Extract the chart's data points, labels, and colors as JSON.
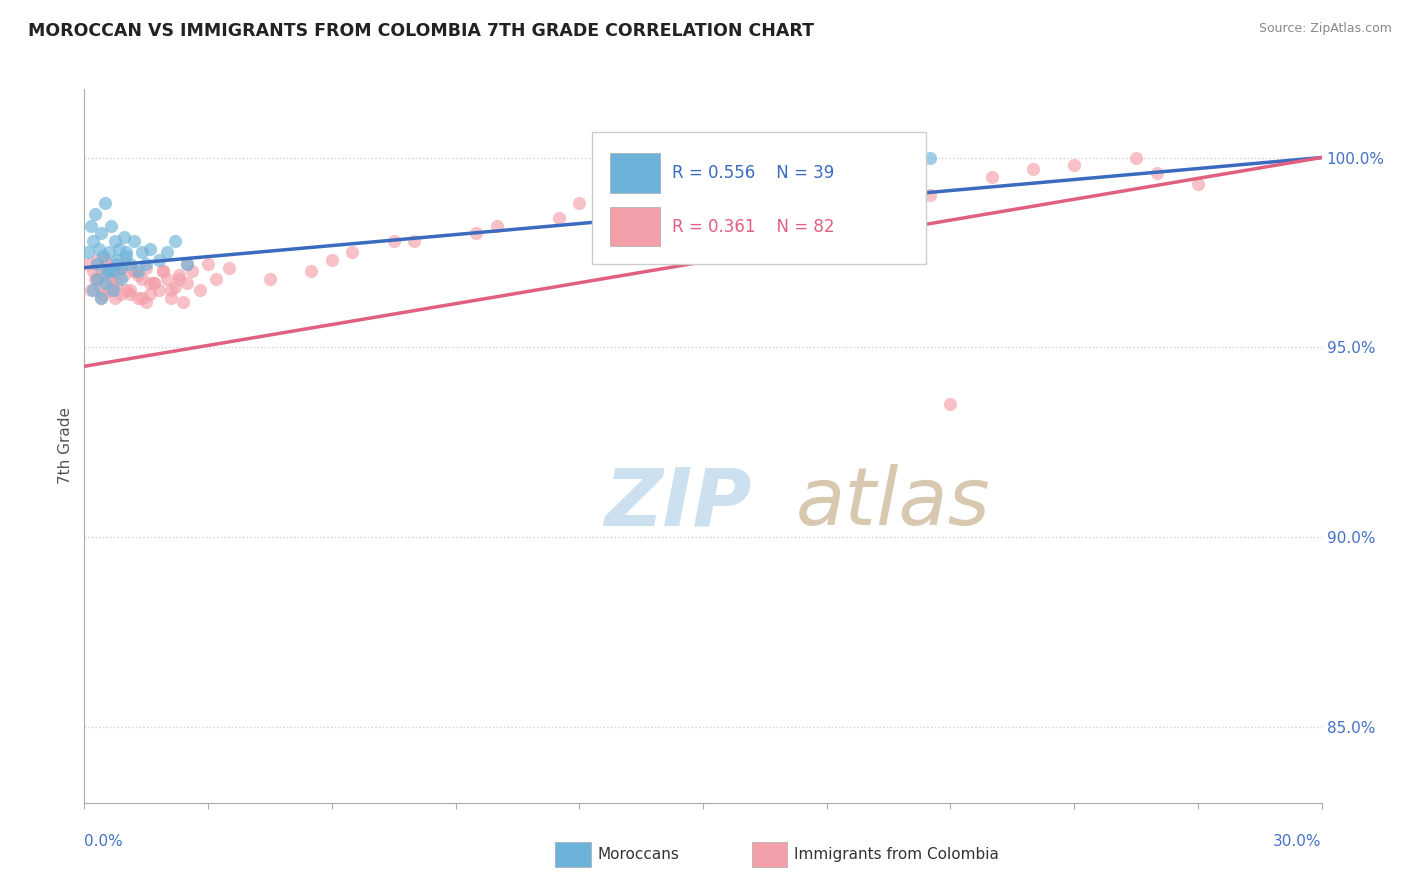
{
  "title": "MOROCCAN VS IMMIGRANTS FROM COLOMBIA 7TH GRADE CORRELATION CHART",
  "source": "Source: ZipAtlas.com",
  "ylabel": "7th Grade",
  "xmin": 0.0,
  "xmax": 30.0,
  "ymin": 83.0,
  "ymax": 101.8,
  "yticks": [
    85.0,
    90.0,
    95.0,
    100.0
  ],
  "ytick_labels": [
    "85.0%",
    "90.0%",
    "95.0%",
    "100.0%"
  ],
  "legend_blue_r": "R = 0.556",
  "legend_blue_n": "N = 39",
  "legend_pink_r": "R = 0.361",
  "legend_pink_n": "N = 82",
  "blue_color": "#6db3d9",
  "pink_color": "#f4a0aa",
  "blue_line_color": "#3a6bbf",
  "pink_line_color": "#e06080",
  "blue_line_x0": 0.0,
  "blue_line_y0": 97.1,
  "blue_line_x1": 30.0,
  "blue_line_y1": 100.0,
  "pink_line_x0": 0.0,
  "pink_line_y0": 94.5,
  "pink_line_x1": 30.0,
  "pink_line_y1": 100.0,
  "blue_scatter_x": [
    0.1,
    0.15,
    0.2,
    0.25,
    0.3,
    0.35,
    0.4,
    0.45,
    0.5,
    0.55,
    0.6,
    0.65,
    0.7,
    0.75,
    0.8,
    0.85,
    0.9,
    0.95,
    1.0,
    1.1,
    1.2,
    1.3,
    1.4,
    1.5,
    1.6,
    1.8,
    2.0,
    2.2,
    2.5,
    0.2,
    0.3,
    0.4,
    0.5,
    0.6,
    0.7,
    0.8,
    0.9,
    1.0,
    20.5
  ],
  "blue_scatter_y": [
    97.5,
    98.2,
    97.8,
    98.5,
    97.2,
    97.6,
    98.0,
    97.4,
    98.8,
    97.0,
    97.5,
    98.2,
    97.0,
    97.8,
    97.3,
    97.6,
    97.1,
    97.9,
    97.4,
    97.2,
    97.8,
    97.0,
    97.5,
    97.2,
    97.6,
    97.3,
    97.5,
    97.8,
    97.2,
    96.5,
    96.8,
    96.3,
    96.7,
    97.0,
    96.5,
    97.2,
    96.8,
    97.5,
    100.0
  ],
  "pink_scatter_x": [
    0.1,
    0.15,
    0.2,
    0.25,
    0.3,
    0.35,
    0.4,
    0.45,
    0.5,
    0.55,
    0.6,
    0.65,
    0.7,
    0.75,
    0.8,
    0.85,
    0.9,
    0.95,
    1.0,
    1.1,
    1.2,
    1.3,
    1.4,
    1.5,
    1.6,
    1.7,
    1.8,
    1.9,
    2.0,
    2.1,
    2.2,
    2.3,
    2.4,
    2.5,
    2.6,
    2.8,
    3.0,
    3.2,
    3.5,
    0.3,
    0.5,
    0.7,
    0.9,
    1.1,
    1.3,
    1.5,
    1.7,
    1.9,
    2.1,
    2.3,
    2.5,
    0.4,
    0.6,
    0.8,
    1.0,
    1.2,
    1.4,
    1.6,
    4.5,
    5.5,
    6.5,
    8.0,
    10.0,
    12.0,
    14.0,
    16.5,
    19.0,
    20.5,
    21.0,
    22.0,
    24.0,
    25.5,
    27.0,
    6.0,
    7.5,
    9.5,
    11.5,
    15.0,
    17.5,
    23.0,
    26.0
  ],
  "pink_scatter_y": [
    97.2,
    96.5,
    97.0,
    96.8,
    97.3,
    96.6,
    97.1,
    96.4,
    96.9,
    97.2,
    96.5,
    96.8,
    97.0,
    96.3,
    96.7,
    97.1,
    96.4,
    96.9,
    97.2,
    96.5,
    97.0,
    96.3,
    96.8,
    97.1,
    96.4,
    96.7,
    96.5,
    97.0,
    96.8,
    96.3,
    96.6,
    96.9,
    96.2,
    96.7,
    97.0,
    96.5,
    97.2,
    96.8,
    97.1,
    96.8,
    97.3,
    96.6,
    97.1,
    96.4,
    96.9,
    96.2,
    96.7,
    97.0,
    96.5,
    96.8,
    97.2,
    96.3,
    96.8,
    97.1,
    96.5,
    97.0,
    96.3,
    96.7,
    96.8,
    97.0,
    97.5,
    97.8,
    98.2,
    98.8,
    98.5,
    98.8,
    99.2,
    99.0,
    93.5,
    99.5,
    99.8,
    100.0,
    99.3,
    97.3,
    97.8,
    98.0,
    98.4,
    99.1,
    99.4,
    99.7,
    99.6
  ],
  "watermark_zip_color": "#cce0f0",
  "watermark_atlas_color": "#d8c8b0"
}
